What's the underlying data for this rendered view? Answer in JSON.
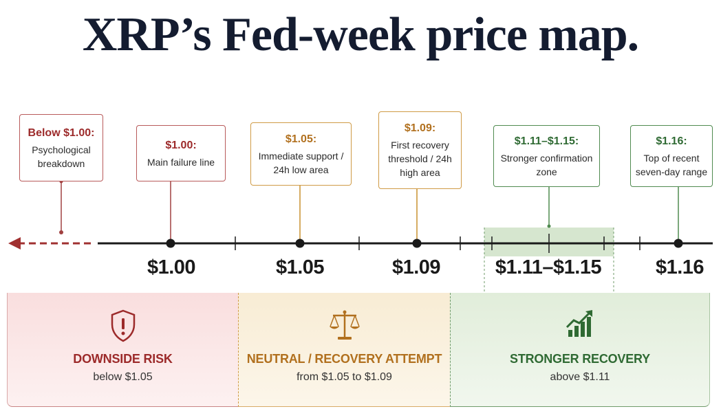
{
  "title": "XRP’s Fed-week price map.",
  "levels": [
    {
      "id": "below",
      "heading": "Below $1.00:",
      "desc": "Psychological breakdown"
    },
    {
      "id": "p100",
      "heading": "$1.00:",
      "desc": "Main failure line",
      "tick": "$1.00"
    },
    {
      "id": "p105",
      "heading": "$1.05:",
      "desc": "Immediate support / 24h low area",
      "tick": "$1.05"
    },
    {
      "id": "p109",
      "heading": "$1.09:",
      "desc": "First recovery threshold / 24h high area",
      "tick": "$1.09"
    },
    {
      "id": "p111",
      "heading": "$1.11–$1.15:",
      "desc": "Stronger confirmation zone",
      "tick": "$1.11–$1.15"
    },
    {
      "id": "p116",
      "heading": "$1.16:",
      "desc": "Top of recent seven-day range",
      "tick": "$1.16"
    }
  ],
  "zones": [
    {
      "id": "downside",
      "heading": "DOWNSIDE RISK",
      "desc": "below $1.05",
      "icon": "shield-alert-icon",
      "color": "#9c2a2a"
    },
    {
      "id": "neutral",
      "heading": "NEUTRAL / RECOVERY ATTEMPT",
      "desc": "from $1.05 to $1.09",
      "icon": "scales-icon",
      "color": "#b1701e"
    },
    {
      "id": "recovery",
      "heading": "STRONGER RECOVERY",
      "desc": "above $1.11",
      "icon": "rising-chart-icon",
      "color": "#2f6a33"
    }
  ],
  "colors": {
    "navy": "#141c30",
    "red": "#9c2a2a",
    "gold": "#b1701e",
    "green": "#2f6a33"
  }
}
